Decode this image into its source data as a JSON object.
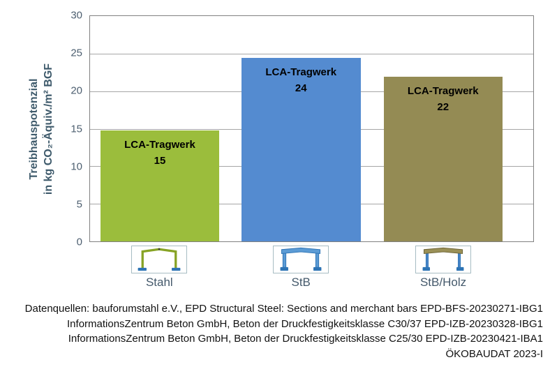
{
  "figure": {
    "y_axis_title_line1": "Treibhauspotenzial",
    "y_axis_title_line2": "in kg CO₂-Äquiv./m² BGF"
  },
  "chart_data": {
    "type": "bar",
    "title": "",
    "xlabel": "",
    "ylabel": "Treibhauspotenzial in kg CO₂-Äquiv./m² BGF",
    "ylim": [
      0,
      30
    ],
    "yticks": [
      30,
      25,
      20,
      15,
      10,
      5,
      0
    ],
    "grid": "horizontal-gray",
    "legend": "none",
    "categories": [
      "Stahl",
      "StB",
      "StB/Holz"
    ],
    "series": [
      {
        "category": "Stahl",
        "bar_label": "LCA-Tragwerk",
        "value": 15,
        "plotted": 14.8,
        "color": "#9bbd3c",
        "icon": "steel-portal-frame"
      },
      {
        "category": "StB",
        "bar_label": "LCA-Tragwerk",
        "value": 24,
        "plotted": 24.4,
        "color": "#548bd0",
        "icon": "concrete-portal-frame"
      },
      {
        "category": "StB/Holz",
        "bar_label": "LCA-Tragwerk",
        "value": 22,
        "plotted": 21.9,
        "color": "#948b54",
        "icon": "concrete-timber-portal-frame"
      }
    ]
  },
  "footer": {
    "lines": [
      "Datenquellen: bauforumstahl e.V., EPD Structural Steel: Sections and merchant bars EPD-BFS-20230271-IBG1",
      "InformationsZentrum Beton GmbH, Beton der Druckfestigkeitsklasse C30/37 EPD-IZB-20230328-IBG1",
      "InformationsZentrum Beton GmbH, Beton der Druckfestigkeitsklasse C25/30 EPD-IZB-20230421-IBA1",
      "ÖKOBAUDAT 2023-I"
    ]
  },
  "colors": {
    "bar_stahl": "#9bbd3c",
    "bar_stb": "#548bd0",
    "bar_stb_holz": "#948b54",
    "axis_text": "#44596b",
    "gridline": "#a6a6a6",
    "plot_border": "#808080"
  }
}
